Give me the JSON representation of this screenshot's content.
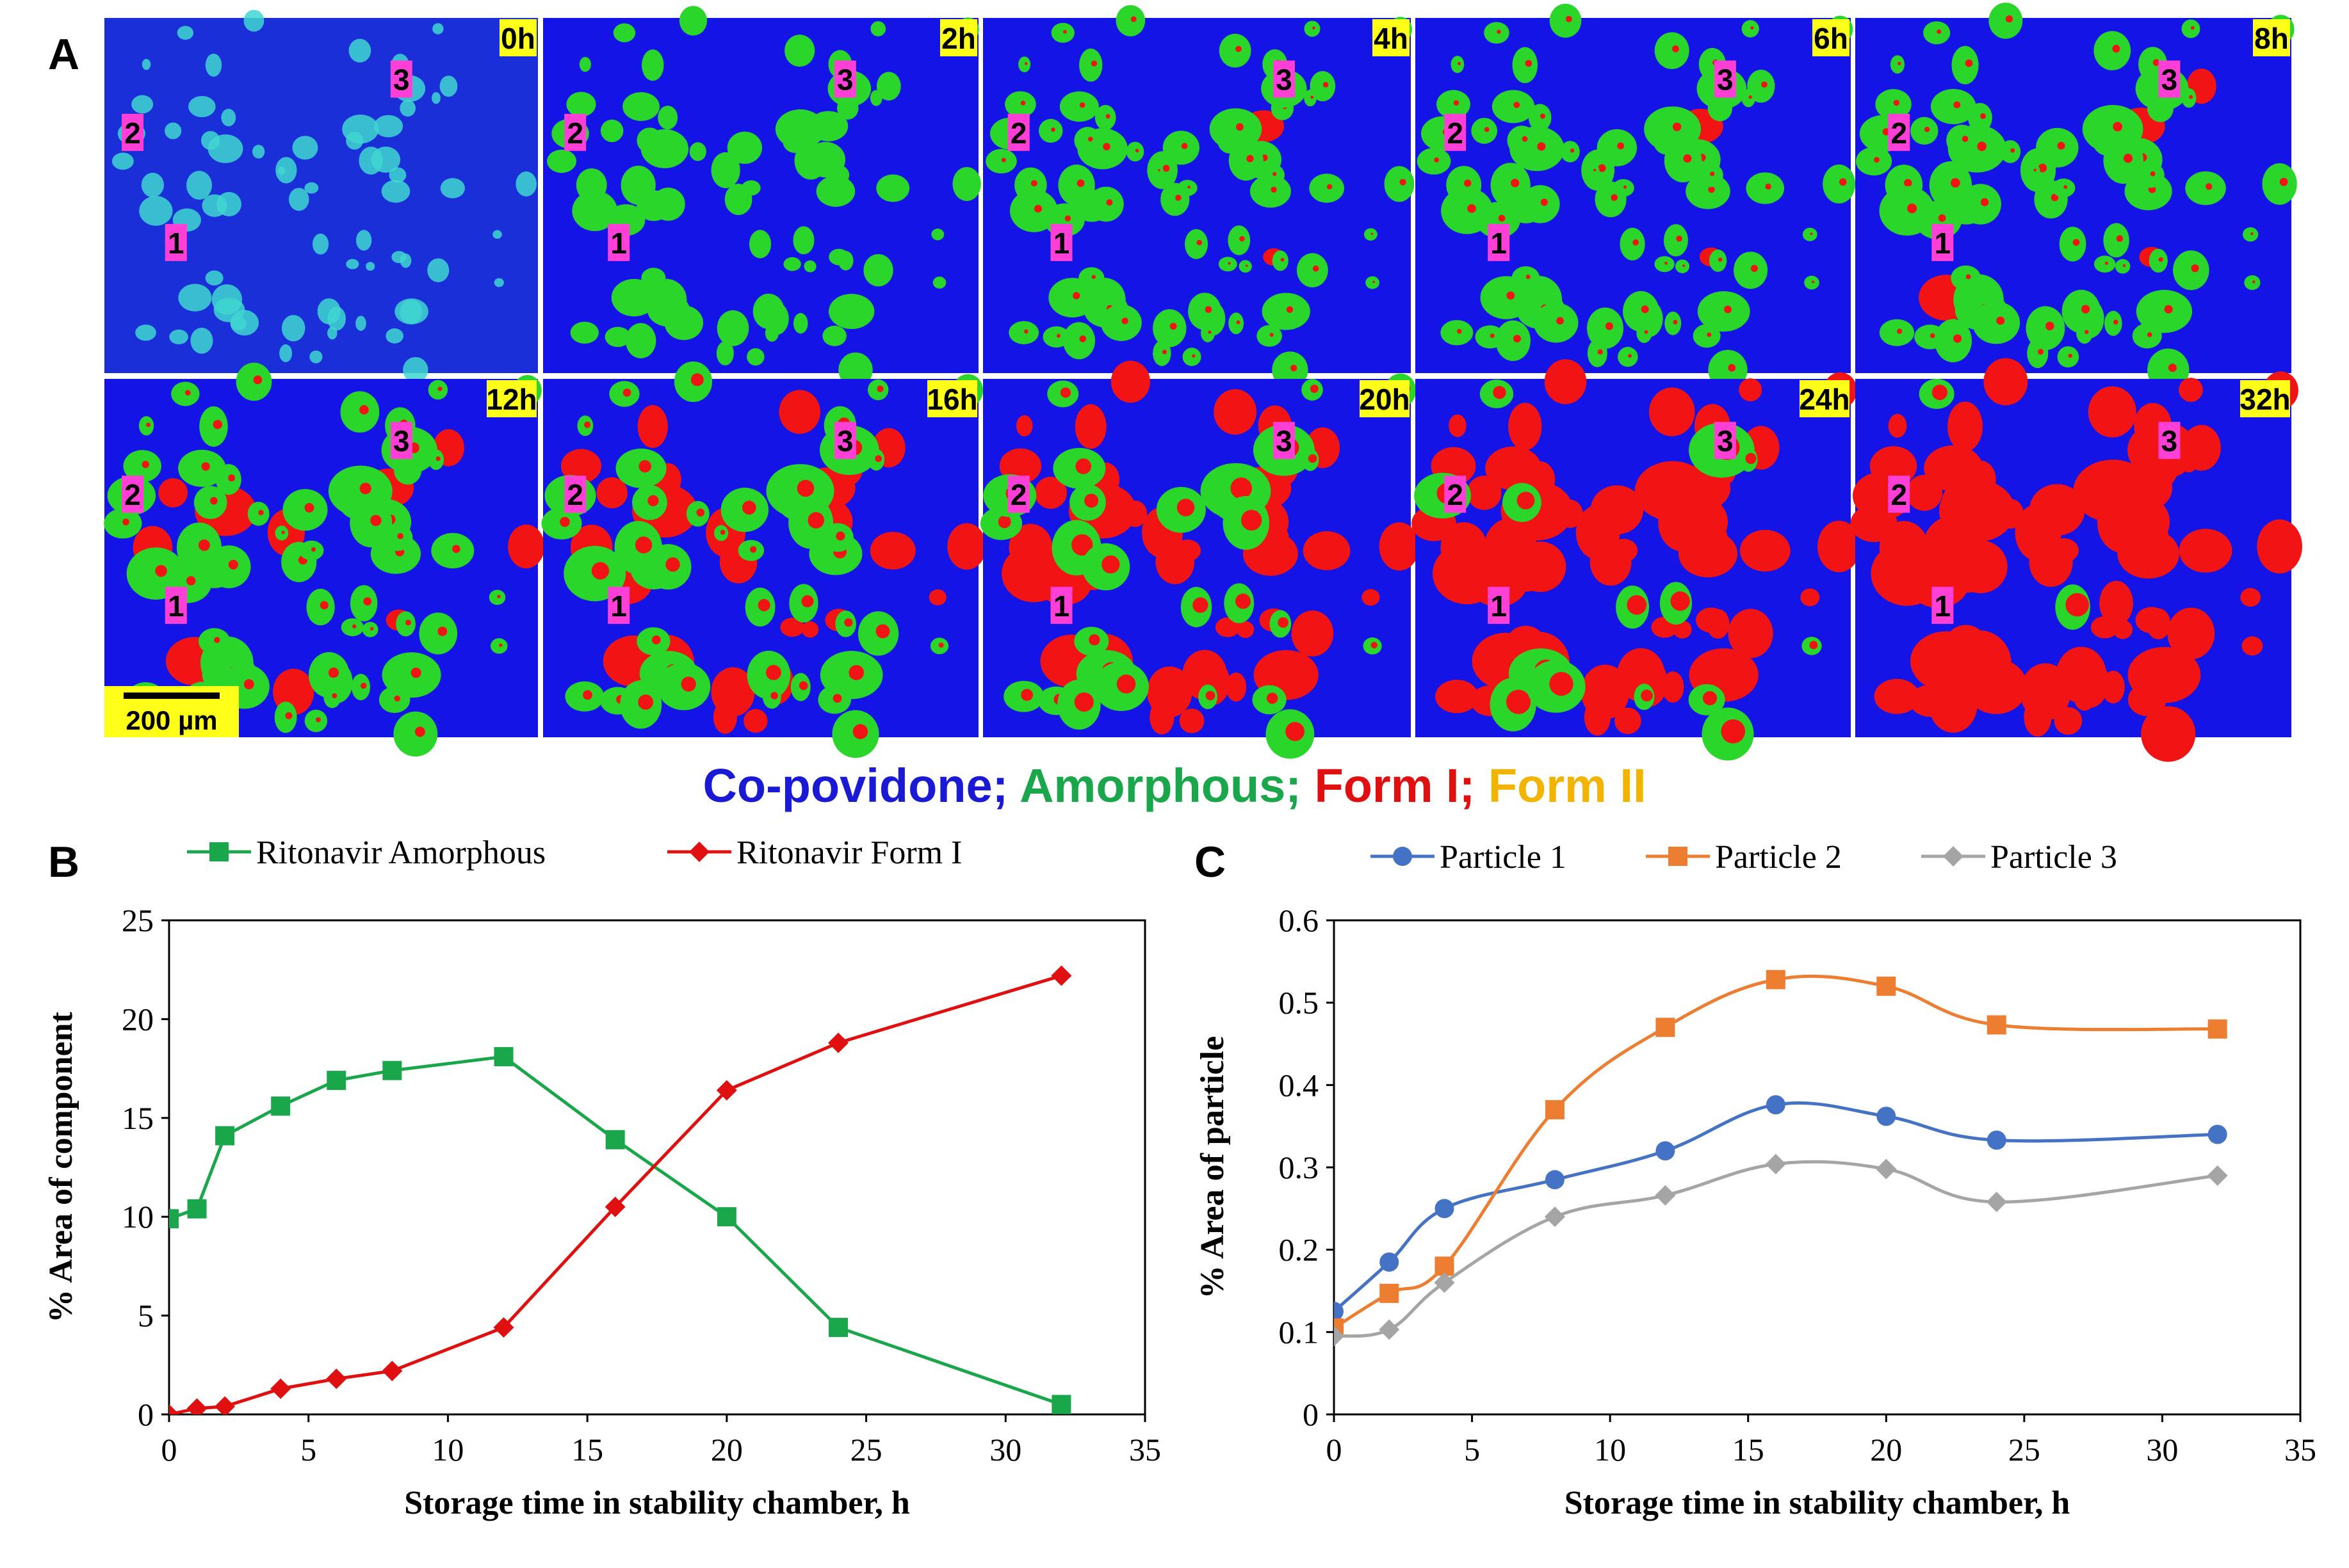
{
  "panel_a": {
    "letter": "A",
    "scale_bar_label": "200 µm",
    "legend": [
      {
        "label": "Co-povidone;",
        "color": "#1a1ad6"
      },
      {
        "label": "Amorphous;",
        "color": "#1aa64a"
      },
      {
        "label": "Form I;",
        "color": "#e01010"
      },
      {
        "label": "Form II",
        "color": "#f2b400"
      }
    ],
    "maps": [
      {
        "label": "0h",
        "style": "raw",
        "red_fraction": 0
      },
      {
        "label": "2h",
        "style": "map",
        "red_fraction": 0.0
      },
      {
        "label": "4h",
        "style": "map",
        "red_fraction": 0.02
      },
      {
        "label": "6h",
        "style": "map",
        "red_fraction": 0.04
      },
      {
        "label": "8h",
        "style": "map",
        "red_fraction": 0.06
      },
      {
        "label": "12h",
        "style": "map",
        "red_fraction": 0.15
      },
      {
        "label": "16h",
        "style": "map",
        "red_fraction": 0.4
      },
      {
        "label": "20h",
        "style": "map",
        "red_fraction": 0.6
      },
      {
        "label": "24h",
        "style": "map",
        "red_fraction": 0.8
      },
      {
        "label": "32h",
        "style": "map",
        "red_fraction": 0.97
      }
    ],
    "particle_labels": [
      "1",
      "2",
      "3"
    ],
    "colors": {
      "matrix": "#1414e6",
      "matrix_raw": "#1a2fd8",
      "amorphous": "#2ad62a",
      "form1": "#f21414",
      "raw_spot": "#3fd6d0",
      "time_label_bg": "#ffff1a",
      "particle_label_bg": "#ff3fd6"
    }
  },
  "chart_data": [
    {
      "panel": "B",
      "type": "line",
      "title": "",
      "xlabel": "Storage time in stability chamber, h",
      "ylabel": "% Area of component",
      "xlim": [
        0,
        35
      ],
      "ylim": [
        0,
        25
      ],
      "xticks": [
        0,
        5,
        10,
        15,
        20,
        25,
        30,
        35
      ],
      "yticks": [
        0,
        5,
        10,
        15,
        20,
        25
      ],
      "grid": false,
      "legend_position": "top",
      "series": [
        {
          "name": "Ritonavir Amorphous",
          "color": "#1aa64a",
          "marker": "square",
          "smooth": false,
          "x": [
            0,
            1,
            2,
            4,
            6,
            8,
            12,
            16,
            20,
            24,
            32
          ],
          "y": [
            9.9,
            10.4,
            14.1,
            15.6,
            16.9,
            17.4,
            18.1,
            13.9,
            10.0,
            4.4,
            0.5
          ]
        },
        {
          "name": "Ritonavir Form I",
          "color": "#e01010",
          "marker": "diamond",
          "smooth": false,
          "x": [
            0,
            1,
            2,
            4,
            6,
            8,
            12,
            16,
            20,
            24,
            32
          ],
          "y": [
            0.0,
            0.3,
            0.4,
            1.3,
            1.8,
            2.2,
            4.4,
            10.5,
            16.4,
            18.8,
            22.2
          ]
        }
      ]
    },
    {
      "panel": "C",
      "type": "line",
      "title": "",
      "xlabel": "Storage time in stability chamber, h",
      "ylabel": "% Area of particle",
      "xlim": [
        0,
        35
      ],
      "ylim": [
        0,
        0.6
      ],
      "xticks": [
        0,
        5,
        10,
        15,
        20,
        25,
        30,
        35
      ],
      "yticks": [
        0,
        0.1,
        0.2,
        0.3,
        0.4,
        0.5,
        0.6
      ],
      "grid": false,
      "legend_position": "top",
      "series": [
        {
          "name": "Particle 1",
          "color": "#4472c4",
          "marker": "circle",
          "smooth": true,
          "x": [
            0,
            2,
            4,
            8,
            12,
            16,
            20,
            24,
            32
          ],
          "y": [
            0.125,
            0.185,
            0.25,
            0.285,
            0.32,
            0.376,
            0.362,
            0.333,
            0.34
          ]
        },
        {
          "name": "Particle 2",
          "color": "#ed7d31",
          "marker": "square",
          "smooth": true,
          "x": [
            0,
            2,
            4,
            8,
            12,
            16,
            20,
            24,
            32
          ],
          "y": [
            0.105,
            0.147,
            0.18,
            0.37,
            0.47,
            0.528,
            0.52,
            0.473,
            0.468
          ]
        },
        {
          "name": "Particle 3",
          "color": "#a5a5a5",
          "marker": "diamond",
          "smooth": true,
          "x": [
            0,
            2,
            4,
            8,
            12,
            16,
            20,
            24,
            32
          ],
          "y": [
            0.095,
            0.103,
            0.16,
            0.24,
            0.266,
            0.304,
            0.298,
            0.258,
            0.29
          ]
        }
      ]
    }
  ]
}
